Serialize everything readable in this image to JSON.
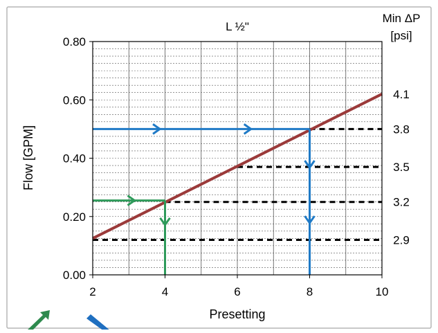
{
  "chart_data": {
    "type": "line",
    "title": "L ½\"",
    "xlabel": "Presetting",
    "ylabel": "Flow [GPM]",
    "right_axis_label_line1": "Min ΔP",
    "right_axis_label_line2": "[psi]",
    "xlim": [
      2,
      10
    ],
    "ylim": [
      0,
      0.8
    ],
    "x_ticks": [
      2,
      4,
      6,
      8,
      10
    ],
    "x_tick_labels": [
      "2",
      "4",
      "6",
      "8",
      "10"
    ],
    "y_ticks": [
      0,
      0.2,
      0.4,
      0.6,
      0.8
    ],
    "y_tick_labels": [
      "0.00",
      "0.20",
      "0.40",
      "0.60",
      "0.80"
    ],
    "grid": true,
    "series": [
      {
        "x": [
          2,
          10
        ],
        "y": [
          0.125,
          0.62
        ],
        "color": "#9b3a3a"
      }
    ],
    "right_axis_levels": [
      {
        "label": "4.1",
        "y": 0.62
      },
      {
        "label": "3.8",
        "y": 0.5
      },
      {
        "label": "3.5",
        "y": 0.37
      },
      {
        "label": "3.2",
        "y": 0.25
      },
      {
        "label": "2.9",
        "y": 0.12
      }
    ],
    "dashed_levels": [
      {
        "from_x": 8,
        "y": 0.5
      },
      {
        "from_x": 6,
        "y": 0.37
      },
      {
        "from_x": 4,
        "y": 0.25
      },
      {
        "from_x": 2,
        "y": 0.12
      }
    ],
    "example_paths": [
      {
        "color": "#2e9a5a",
        "flow": 0.255,
        "presetting": 4
      },
      {
        "color": "#1f7ac6",
        "flow": 0.5,
        "presetting": 8
      }
    ]
  }
}
